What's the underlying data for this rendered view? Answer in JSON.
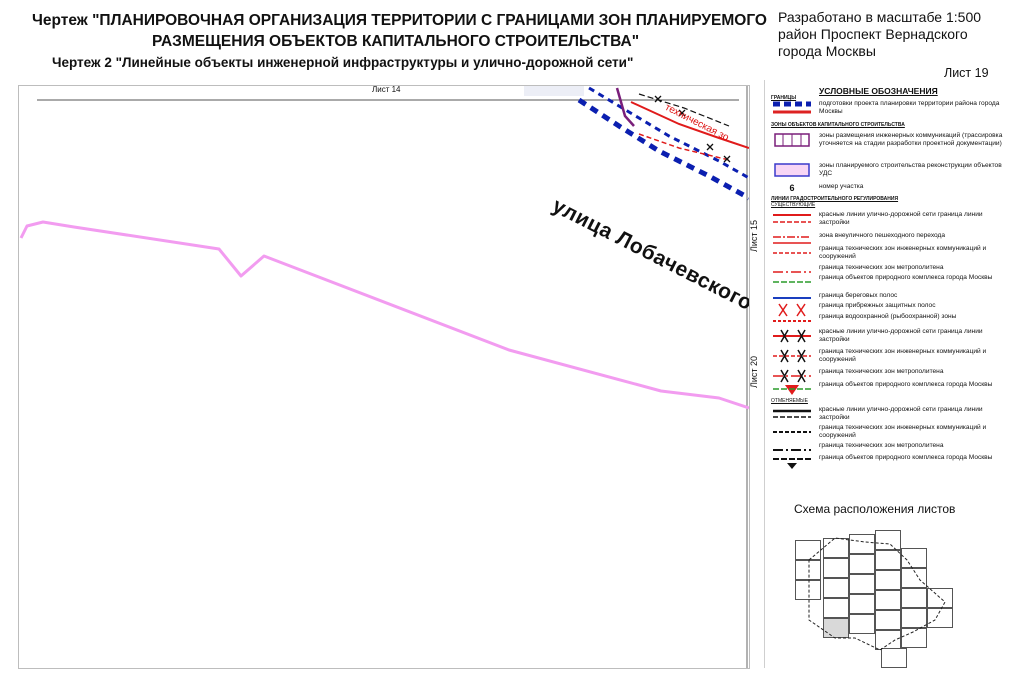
{
  "title": {
    "line1": "Чертеж \"ПЛАНИРОВОЧНАЯ ОРГАНИЗАЦИЯ ТЕРРИТОРИИ С ГРАНИЦАМИ ЗОН ПЛАНИРУЕМОГО",
    "line2": "РАЗМЕЩЕНИЯ ОБЪЕКТОВ КАПИТАЛЬНОГО СТРОИТЕЛЬСТВА\"",
    "line3": "Чертеж 2 \"Линейные объекты инженерной инфраструктуры и улично-дорожной сети\""
  },
  "scale_note": "Разработано в масштабе 1:500 район Проспект Вернадского города Москвы",
  "sheet_number": "Лист 19",
  "map": {
    "ref_top": "Лист 14",
    "ref_right_upper": "Лист 15",
    "ref_right_lower": "Лист 20",
    "street": "улица Лобачевского",
    "tech_zone": "техническая зо",
    "colors": {
      "pink_line": "#f29cf0",
      "blue_dashed": "#0b1fb0",
      "red": "#e01b1b",
      "purple": "#7a1f7a"
    }
  },
  "legend": {
    "title": "УСЛОВНЫЕ ОБОЗНАЧЕНИЯ",
    "section_boundaries": "ГРАНИЦЫ",
    "section_zones": "ЗОНЫ ОБЪЕКТОВ КАПИТАЛЬНОГО СТРОИТЕЛЬСТВА",
    "section_lines": "ЛИНИИ ГРАДОСТРОИТЕЛЬНОГО РЕГУЛИРОВАНИЯ",
    "section_sub": "СУЩЕСТВУЮЩИЕ",
    "section_sub2": "УСТАНАВЛИВАЕМЫЕ",
    "section_sub3": "ОТМЕНЯЕМЫЕ",
    "plot_number_symbol": "6",
    "items": [
      "подготовки проекта планировки территории района города Москвы",
      "зоны размещения инженерных коммуникаций (трассировка уточняется на стадии разработки проектной документации)",
      "зоны планируемого строительства реконструкции объектов УДС",
      "номер участка",
      "красные линии улично-дорожной сети граница линии застройки",
      "зона внеуличного пешеходного перехода",
      "граница технических зон инженерных коммуникаций и сооружений",
      "граница технических зон метрополитена",
      "граница объектов природного комплекса города Москвы",
      "граница береговых полос",
      "граница прибрежных защитных полос",
      "граница водоохранной (рыбоохранной) зоны",
      "красные линии улично-дорожной сети граница линии застройки",
      "граница технических зон инженерных коммуникаций и сооружений",
      "граница технических зон метрополитена",
      "граница объектов природного комплекса города Москвы",
      "красные линии улично-дорожной сети граница линии застройки",
      "граница технических зон инженерных коммуникаций и сооружений",
      "граница технических зон метрополитена",
      "граница объектов природного комплекса города Москвы"
    ]
  },
  "schema": {
    "title": "Схема расположения листов",
    "active_cell": "Лист 19"
  }
}
